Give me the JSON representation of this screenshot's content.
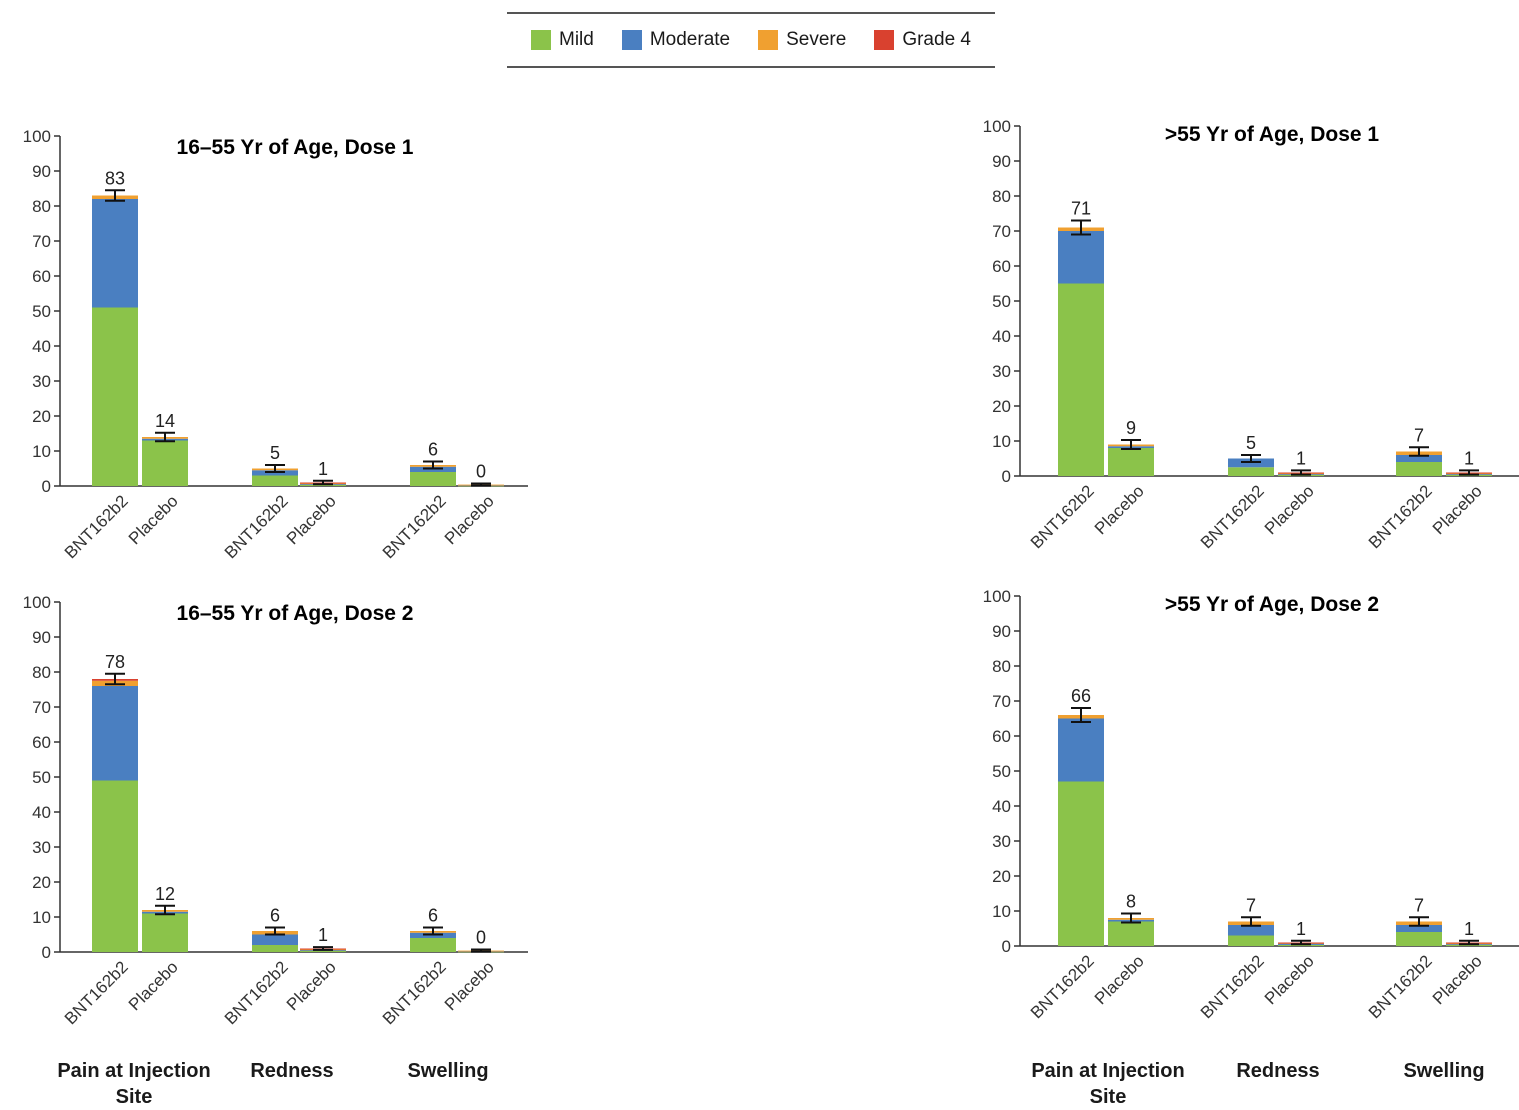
{
  "legend": [
    {
      "name": "Mild",
      "color": "#8bc34a"
    },
    {
      "name": "Moderate",
      "color": "#4a7fc1"
    },
    {
      "name": "Severe",
      "color": "#f0a030"
    },
    {
      "name": "Grade 4",
      "color": "#d9412f"
    }
  ],
  "categories": [
    "Pain at Injection Site",
    "Redness",
    "Swelling"
  ],
  "chart_data": [
    {
      "type": "bar",
      "stacked": true,
      "title": "16–55 Yr of Age, Dose 1",
      "ylim": [
        0,
        100
      ],
      "yticks": [
        "0",
        "10",
        "20",
        "30",
        "40",
        "50",
        "60",
        "70",
        "80",
        "90",
        "100"
      ],
      "bars": [
        {
          "category": "Pain at Injection Site",
          "group": "BNT162b2",
          "label": "83",
          "mild": 51,
          "moderate": 31,
          "severe": 1,
          "grade4": 0,
          "error": 1.5
        },
        {
          "category": "Pain at Injection Site",
          "group": "Placebo",
          "label": "14",
          "mild": 13,
          "moderate": 0.5,
          "severe": 0.5,
          "grade4": 0,
          "error": 1.2
        },
        {
          "category": "Redness",
          "group": "BNT162b2",
          "label": "5",
          "mild": 3,
          "moderate": 1.5,
          "severe": 0.5,
          "grade4": 0,
          "error": 1
        },
        {
          "category": "Redness",
          "group": "Placebo",
          "label": "1",
          "mild": 0.3,
          "moderate": 0.3,
          "severe": 0.2,
          "grade4": 0.2,
          "error": 0.5
        },
        {
          "category": "Swelling",
          "group": "BNT162b2",
          "label": "6",
          "mild": 4,
          "moderate": 1.5,
          "severe": 0.5,
          "grade4": 0,
          "error": 1
        },
        {
          "category": "Swelling",
          "group": "Placebo",
          "label": "0",
          "mild": 0.2,
          "moderate": 0.1,
          "severe": 0.1,
          "grade4": 0,
          "error": 0.3
        }
      ]
    },
    {
      "type": "bar",
      "stacked": true,
      "title": ">55 Yr of Age, Dose 1",
      "ylim": [
        0,
        100
      ],
      "yticks": [
        "0",
        "10",
        "20",
        "30",
        "40",
        "50",
        "60",
        "70",
        "80",
        "90",
        "100"
      ],
      "bars": [
        {
          "category": "Pain at Injection Site",
          "group": "BNT162b2",
          "label": "71",
          "mild": 55,
          "moderate": 15,
          "severe": 1,
          "grade4": 0,
          "error": 2
        },
        {
          "category": "Pain at Injection Site",
          "group": "Placebo",
          "label": "9",
          "mild": 8,
          "moderate": 0.5,
          "severe": 0.5,
          "grade4": 0,
          "error": 1.3
        },
        {
          "category": "Redness",
          "group": "BNT162b2",
          "label": "5",
          "mild": 2.5,
          "moderate": 2.5,
          "severe": 0,
          "grade4": 0,
          "error": 1
        },
        {
          "category": "Redness",
          "group": "Placebo",
          "label": "1",
          "mild": 0.3,
          "moderate": 0.3,
          "severe": 0.2,
          "grade4": 0.2,
          "error": 0.6
        },
        {
          "category": "Swelling",
          "group": "BNT162b2",
          "label": "7",
          "mild": 4,
          "moderate": 2,
          "severe": 1,
          "grade4": 0,
          "error": 1.2
        },
        {
          "category": "Swelling",
          "group": "Placebo",
          "label": "1",
          "mild": 0.3,
          "moderate": 0.3,
          "severe": 0.2,
          "grade4": 0.2,
          "error": 0.6
        }
      ]
    },
    {
      "type": "bar",
      "stacked": true,
      "title": "16–55 Yr of Age, Dose 2",
      "ylim": [
        0,
        100
      ],
      "yticks": [
        "0",
        "10",
        "20",
        "30",
        "40",
        "50",
        "60",
        "70",
        "80",
        "90",
        "100"
      ],
      "bars": [
        {
          "category": "Pain at Injection Site",
          "group": "BNT162b2",
          "label": "78",
          "mild": 49,
          "moderate": 27,
          "severe": 1.5,
          "grade4": 0.5,
          "error": 1.5
        },
        {
          "category": "Pain at Injection Site",
          "group": "Placebo",
          "label": "12",
          "mild": 11,
          "moderate": 0.5,
          "severe": 0.5,
          "grade4": 0,
          "error": 1.2
        },
        {
          "category": "Redness",
          "group": "BNT162b2",
          "label": "6",
          "mild": 2,
          "moderate": 3,
          "severe": 1,
          "grade4": 0,
          "error": 1
        },
        {
          "category": "Redness",
          "group": "Placebo",
          "label": "1",
          "mild": 0.4,
          "moderate": 0.2,
          "severe": 0.2,
          "grade4": 0.2,
          "error": 0.4
        },
        {
          "category": "Swelling",
          "group": "BNT162b2",
          "label": "6",
          "mild": 4,
          "moderate": 1.5,
          "severe": 0.5,
          "grade4": 0,
          "error": 1
        },
        {
          "category": "Swelling",
          "group": "Placebo",
          "label": "0",
          "mild": 0.2,
          "moderate": 0.1,
          "severe": 0.1,
          "grade4": 0,
          "error": 0.3
        }
      ]
    },
    {
      "type": "bar",
      "stacked": true,
      "title": ">55 Yr of Age, Dose 2",
      "ylim": [
        0,
        100
      ],
      "yticks": [
        "0",
        "10",
        "20",
        "30",
        "40",
        "50",
        "60",
        "70",
        "80",
        "90",
        "100"
      ],
      "bars": [
        {
          "category": "Pain at Injection Site",
          "group": "BNT162b2",
          "label": "66",
          "mild": 47,
          "moderate": 18,
          "severe": 1,
          "grade4": 0,
          "error": 2
        },
        {
          "category": "Pain at Injection Site",
          "group": "Placebo",
          "label": "8",
          "mild": 7,
          "moderate": 0.5,
          "severe": 0.5,
          "grade4": 0,
          "error": 1.3
        },
        {
          "category": "Redness",
          "group": "BNT162b2",
          "label": "7",
          "mild": 3,
          "moderate": 3,
          "severe": 1,
          "grade4": 0,
          "error": 1.2
        },
        {
          "category": "Redness",
          "group": "Placebo",
          "label": "1",
          "mild": 0.3,
          "moderate": 0.4,
          "severe": 0.2,
          "grade4": 0.1,
          "error": 0.5
        },
        {
          "category": "Swelling",
          "group": "BNT162b2",
          "label": "7",
          "mild": 4,
          "moderate": 2,
          "severe": 1,
          "grade4": 0,
          "error": 1.2
        },
        {
          "category": "Swelling",
          "group": "Placebo",
          "label": "1",
          "mild": 0.3,
          "moderate": 0.3,
          "severe": 0.2,
          "grade4": 0.2,
          "error": 0.5
        }
      ]
    }
  ]
}
